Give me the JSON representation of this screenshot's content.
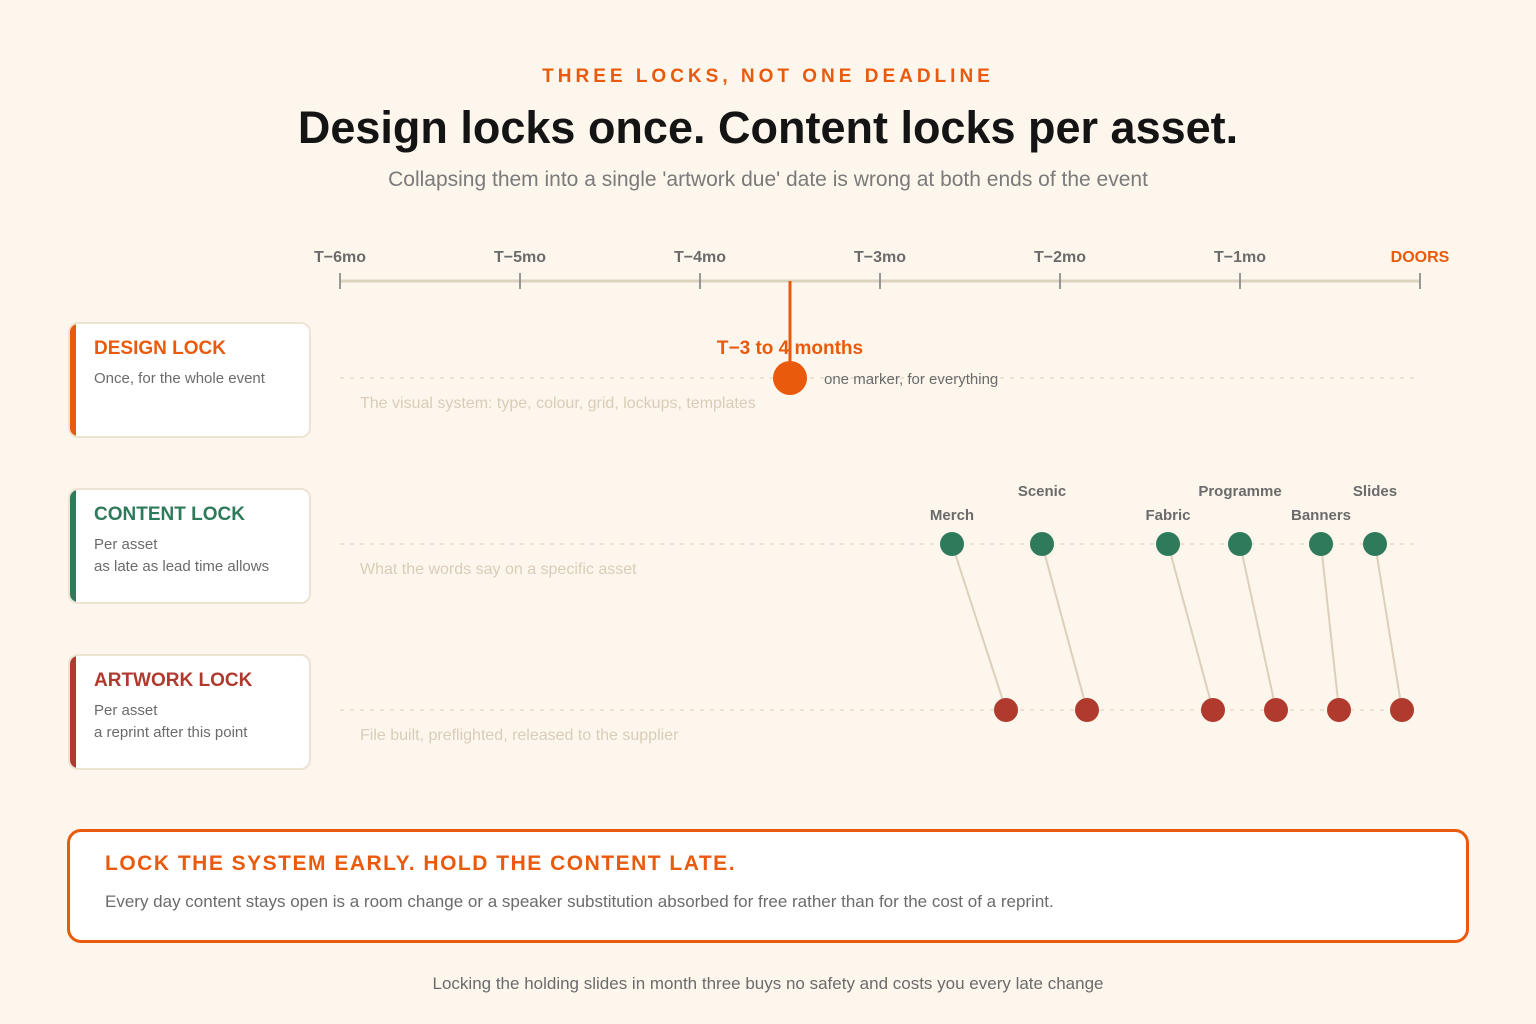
{
  "header": {
    "eyebrow": "THREE LOCKS, NOT ONE DEADLINE",
    "title": "Design locks once. Content locks per asset.",
    "subtitle": "Collapsing them into a single 'artwork due' date is wrong at both ends of the event"
  },
  "axis": {
    "ticks": [
      "T−6mo",
      "T−5mo",
      "T−4mo",
      "T−3mo",
      "T−2mo",
      "T−1mo",
      "DOORS"
    ],
    "highlight_tick": "DOORS"
  },
  "lanes": [
    {
      "key": "design",
      "name": "DESIGN LOCK",
      "desc_line1": "Once, for the whole event",
      "desc_line2": "",
      "lane_caption": "The visual system: type, colour, grid, lockups, templates",
      "color": "#ea5a0c"
    },
    {
      "key": "content",
      "name": "CONTENT LOCK",
      "desc_line1": "Per asset",
      "desc_line2": "as late as lead time allows",
      "lane_caption": "What the words say on a specific asset",
      "color": "#2e7a5a"
    },
    {
      "key": "artwork",
      "name": "ARTWORK LOCK",
      "desc_line1": "Per asset",
      "desc_line2": "a reprint after this point",
      "lane_caption": "File built, preflighted, released to the supplier",
      "color": "#b13a2e"
    }
  ],
  "design_marker": {
    "months_before": 3.5,
    "label": "T−3 to 4 months",
    "note": "one marker, for everything"
  },
  "assets": [
    {
      "name": "Merch",
      "content_months_before": 2.6,
      "artwork_months_before": 2.3
    },
    {
      "name": "Scenic",
      "content_months_before": 2.1,
      "artwork_months_before": 1.85
    },
    {
      "name": "Fabric",
      "content_months_before": 1.4,
      "artwork_months_before": 1.15
    },
    {
      "name": "Programme",
      "content_months_before": 1.0,
      "artwork_months_before": 0.8
    },
    {
      "name": "Banners",
      "content_months_before": 0.55,
      "artwork_months_before": 0.45
    },
    {
      "name": "Slides",
      "content_months_before": 0.25,
      "artwork_months_before": 0.1
    }
  ],
  "callout": {
    "title": "LOCK THE SYSTEM EARLY. HOLD THE CONTENT LATE.",
    "body": "Every day content stays open is a room change or a speaker substitution absorbed for free rather than for the cost of a reprint."
  },
  "footer": "Locking the holding slides in month three buys no safety and costs you every late change",
  "colors": {
    "accent": "#ea5a0c",
    "content": "#2e7a5a",
    "artwork": "#b13a2e",
    "axis": "#dcd2c0",
    "background": "#fdf6ec"
  }
}
